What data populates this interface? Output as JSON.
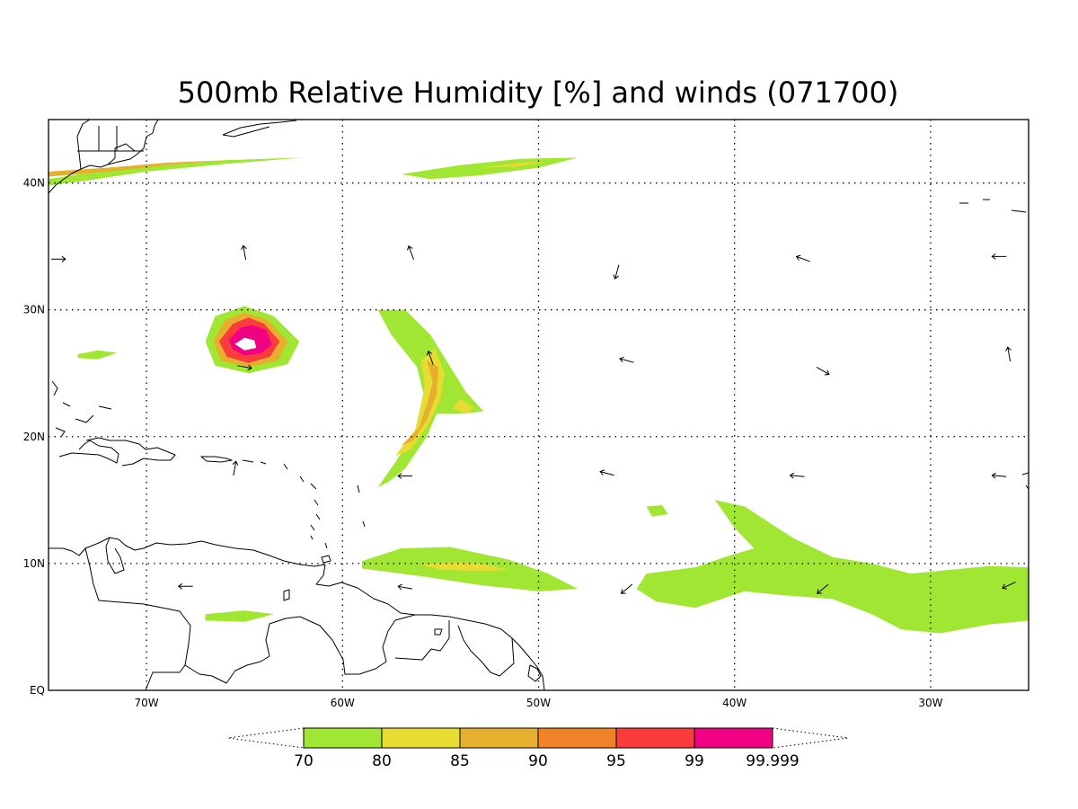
{
  "chart_data": {
    "type": "heatmap",
    "title": "500mb Relative Humidity [%] and winds (071700)",
    "xlim": [
      -75,
      -25
    ],
    "ylim": [
      0,
      45
    ],
    "grid": true,
    "x_ticks": [
      {
        "value": -70,
        "label": "70W"
      },
      {
        "value": -60,
        "label": "60W"
      },
      {
        "value": -50,
        "label": "50W"
      },
      {
        "value": -40,
        "label": "40W"
      },
      {
        "value": -30,
        "label": "30W"
      }
    ],
    "y_ticks": [
      {
        "value": 0,
        "label": "EQ"
      },
      {
        "value": 10,
        "label": "10N"
      },
      {
        "value": 20,
        "label": "20N"
      },
      {
        "value": 30,
        "label": "30N"
      },
      {
        "value": 40,
        "label": "40N"
      }
    ],
    "colorbar": {
      "levels": [
        {
          "label": "70",
          "color": "#a0e632"
        },
        {
          "label": "80",
          "color": "#e6dc32"
        },
        {
          "label": "85",
          "color": "#e6af2d"
        },
        {
          "label": "90",
          "color": "#f08228"
        },
        {
          "label": "95",
          "color": "#fa3c3c"
        },
        {
          "label": "99",
          "color": "#f00082"
        },
        {
          "label": "99.999",
          "color": ""
        }
      ]
    },
    "humidity_regions": [
      {
        "name": "northwest-plume",
        "level": 70,
        "points": [
          [
            -75,
            40.3
          ],
          [
            -73,
            40.8
          ],
          [
            -70,
            41.3
          ],
          [
            -66,
            41.8
          ],
          [
            -62,
            42
          ],
          [
            -66,
            41.5
          ],
          [
            -70,
            40.9
          ],
          [
            -73,
            40.2
          ],
          [
            -75,
            39.8
          ]
        ]
      },
      {
        "name": "northwest-plume-core",
        "level": 85,
        "points": [
          [
            -75,
            40.9
          ],
          [
            -72,
            41.2
          ],
          [
            -69,
            41.6
          ],
          [
            -66,
            41.8
          ],
          [
            -69,
            41.4
          ],
          [
            -72,
            40.9
          ],
          [
            -75,
            40.5
          ]
        ]
      },
      {
        "name": "north-central-streak",
        "level": 70,
        "points": [
          [
            -57,
            40.7
          ],
          [
            -54,
            41.4
          ],
          [
            -51,
            41.9
          ],
          [
            -48,
            42
          ],
          [
            -50,
            41.2
          ],
          [
            -53,
            40.6
          ],
          [
            -55.5,
            40.3
          ]
        ]
      },
      {
        "name": "north-central-core",
        "level": 80,
        "points": [
          [
            -53,
            41.2
          ],
          [
            -51,
            41.6
          ],
          [
            -49.5,
            41.7
          ],
          [
            -51,
            41.3
          ]
        ]
      },
      {
        "name": "small-west-blob",
        "level": 70,
        "points": [
          [
            -73.5,
            26.5
          ],
          [
            -72.5,
            26.8
          ],
          [
            -71.5,
            26.6
          ],
          [
            -72.5,
            26.1
          ],
          [
            -73.5,
            26.2
          ]
        ]
      },
      {
        "name": "hurricane-ring",
        "level": 70,
        "points": [
          [
            -67,
            27.5
          ],
          [
            -66.5,
            29.5
          ],
          [
            -65,
            30.3
          ],
          [
            -63.5,
            29.5
          ],
          [
            -62.2,
            27.5
          ],
          [
            -62.8,
            25.7
          ],
          [
            -64.8,
            25
          ],
          [
            -66.5,
            25.6
          ]
        ]
      },
      {
        "name": "hurricane-ring",
        "level": 85,
        "points": [
          [
            -66.6,
            27.5
          ],
          [
            -66,
            29.2
          ],
          [
            -65,
            29.8
          ],
          [
            -63.8,
            29.2
          ],
          [
            -62.8,
            27.5
          ],
          [
            -63.3,
            26
          ],
          [
            -64.8,
            25.5
          ],
          [
            -66.2,
            26
          ]
        ]
      },
      {
        "name": "hurricane-ring",
        "level": 95,
        "points": [
          [
            -66.3,
            27.5
          ],
          [
            -65.6,
            28.9
          ],
          [
            -64.8,
            29.4
          ],
          [
            -64,
            28.9
          ],
          [
            -63.2,
            27.5
          ],
          [
            -63.7,
            26.3
          ],
          [
            -64.8,
            25.8
          ],
          [
            -65.9,
            26.3
          ]
        ]
      },
      {
        "name": "hurricane-ring",
        "level": 99,
        "points": [
          [
            -65.8,
            27.6
          ],
          [
            -65.2,
            28.6
          ],
          [
            -64.6,
            28.8
          ],
          [
            -63.9,
            28.4
          ],
          [
            -63.6,
            27.3
          ],
          [
            -64.1,
            26.6
          ],
          [
            -65,
            26.4
          ],
          [
            -65.6,
            26.9
          ]
        ]
      },
      {
        "name": "hurricane-eye",
        "level": 0,
        "points": [
          [
            -65.5,
            27.3
          ],
          [
            -65,
            27.8
          ],
          [
            -64.5,
            27.6
          ],
          [
            -64.4,
            27
          ],
          [
            -65,
            26.8
          ]
        ]
      },
      {
        "name": "central-band",
        "level": 70,
        "points": [
          [
            -58.2,
            16
          ],
          [
            -57.3,
            18
          ],
          [
            -56.3,
            20.5
          ],
          [
            -55.8,
            23
          ],
          [
            -56.2,
            25.5
          ],
          [
            -57.5,
            28
          ],
          [
            -58.2,
            30
          ],
          [
            -56.8,
            30
          ],
          [
            -55.5,
            28
          ],
          [
            -54.5,
            25.5
          ],
          [
            -53.7,
            23.5
          ],
          [
            -52.8,
            22
          ],
          [
            -54,
            21.8
          ],
          [
            -55.2,
            21.8
          ],
          [
            -55.7,
            20
          ],
          [
            -56.8,
            17.5
          ],
          [
            -57.6,
            16.5
          ]
        ]
      },
      {
        "name": "central-band",
        "level": 80,
        "points": [
          [
            -57.3,
            18.5
          ],
          [
            -56.3,
            20.5
          ],
          [
            -56,
            22.5
          ],
          [
            -55.8,
            24
          ],
          [
            -56,
            26
          ],
          [
            -55.3,
            27
          ],
          [
            -54.8,
            25
          ],
          [
            -55,
            23
          ],
          [
            -55.6,
            21
          ],
          [
            -56.5,
            19
          ]
        ]
      },
      {
        "name": "central-band",
        "level": 85,
        "points": [
          [
            -57,
            19.3
          ],
          [
            -56.1,
            20.7
          ],
          [
            -55.7,
            22.5
          ],
          [
            -55.4,
            24.3
          ],
          [
            -55.7,
            26
          ],
          [
            -55.1,
            25.5
          ],
          [
            -55.2,
            23.3
          ],
          [
            -55.7,
            21.3
          ],
          [
            -56.4,
            19.7
          ]
        ]
      },
      {
        "name": "central-band-east",
        "level": 80,
        "points": [
          [
            -54,
            23
          ],
          [
            -53.3,
            22.3
          ],
          [
            -53.6,
            21.8
          ],
          [
            -54.4,
            22.2
          ]
        ]
      },
      {
        "name": "lower-central-band",
        "level": 70,
        "points": [
          [
            -59,
            10.2
          ],
          [
            -57,
            11.2
          ],
          [
            -54.5,
            11.3
          ],
          [
            -51.5,
            10.3
          ],
          [
            -49.5,
            9.2
          ],
          [
            -48,
            8
          ],
          [
            -50,
            7.8
          ],
          [
            -53,
            8.3
          ],
          [
            -56,
            9
          ],
          [
            -59,
            9.6
          ]
        ]
      },
      {
        "name": "lower-central-core",
        "level": 80,
        "points": [
          [
            -56,
            9.9
          ],
          [
            -54.5,
            10.1
          ],
          [
            -53,
            10
          ],
          [
            -51.5,
            9.5
          ],
          [
            -53,
            9.4
          ],
          [
            -55,
            9.5
          ]
        ]
      },
      {
        "name": "small-east-blob",
        "level": 70,
        "points": [
          [
            -44.5,
            14.5
          ],
          [
            -43.7,
            14.6
          ],
          [
            -43.4,
            13.9
          ],
          [
            -44.2,
            13.7
          ]
        ]
      },
      {
        "name": "east-region",
        "level": 70,
        "points": [
          [
            -41,
            15
          ],
          [
            -39.5,
            14.5
          ],
          [
            -38.5,
            13.5
          ],
          [
            -37,
            12
          ],
          [
            -35,
            10.5
          ],
          [
            -33,
            10
          ],
          [
            -31,
            9.2
          ],
          [
            -29,
            9.5
          ],
          [
            -27,
            9.8
          ],
          [
            -25,
            9.7
          ],
          [
            -25,
            5.5
          ],
          [
            -27,
            5.2
          ],
          [
            -29.5,
            4.5
          ],
          [
            -31.5,
            4.8
          ],
          [
            -33,
            6
          ],
          [
            -35,
            7.2
          ],
          [
            -37.5,
            7.5
          ],
          [
            -39.5,
            7.8
          ],
          [
            -42,
            6.5
          ],
          [
            -44,
            7
          ],
          [
            -45,
            8
          ],
          [
            -44.5,
            9.2
          ],
          [
            -42,
            9.7
          ],
          [
            -40.5,
            10.5
          ],
          [
            -39,
            11.2
          ],
          [
            -40,
            12.8
          ]
        ]
      },
      {
        "name": "south-west-blob",
        "level": 70,
        "points": [
          [
            -67,
            6
          ],
          [
            -65,
            6.3
          ],
          [
            -63.5,
            6
          ],
          [
            -65,
            5.4
          ],
          [
            -67,
            5.5
          ]
        ]
      }
    ],
    "wind_arrows": [
      {
        "lon": -74.5,
        "lat": 34,
        "dir": 90
      },
      {
        "lon": -65,
        "lat": 34.5,
        "dir": -10
      },
      {
        "lon": -56.5,
        "lat": 34.5,
        "dir": -20
      },
      {
        "lon": -46,
        "lat": 33,
        "dir": 195
      },
      {
        "lon": -36.5,
        "lat": 34,
        "dir": -70
      },
      {
        "lon": -26.5,
        "lat": 34.2,
        "dir": -90
      },
      {
        "lon": -65,
        "lat": 25.5,
        "dir": 100
      },
      {
        "lon": -55.5,
        "lat": 26.2,
        "dir": -20
      },
      {
        "lon": -45.5,
        "lat": 26,
        "dir": -75
      },
      {
        "lon": -35.5,
        "lat": 25.2,
        "dir": 120
      },
      {
        "lon": -26,
        "lat": 26.5,
        "dir": -10
      },
      {
        "lon": -65.5,
        "lat": 17.5,
        "dir": 10
      },
      {
        "lon": -56.8,
        "lat": 16.9,
        "dir": -90
      },
      {
        "lon": -46.5,
        "lat": 17.1,
        "dir": -75
      },
      {
        "lon": -36.8,
        "lat": 16.9,
        "dir": -85
      },
      {
        "lon": -26.5,
        "lat": 16.9,
        "dir": -85
      },
      {
        "lon": -68,
        "lat": 8.2,
        "dir": -90
      },
      {
        "lon": -56.8,
        "lat": 8.1,
        "dir": -80
      },
      {
        "lon": -45.5,
        "lat": 8,
        "dir": -130
      },
      {
        "lon": -35.5,
        "lat": 8,
        "dir": -130
      },
      {
        "lon": -26,
        "lat": 8.3,
        "dir": -115
      }
    ]
  }
}
